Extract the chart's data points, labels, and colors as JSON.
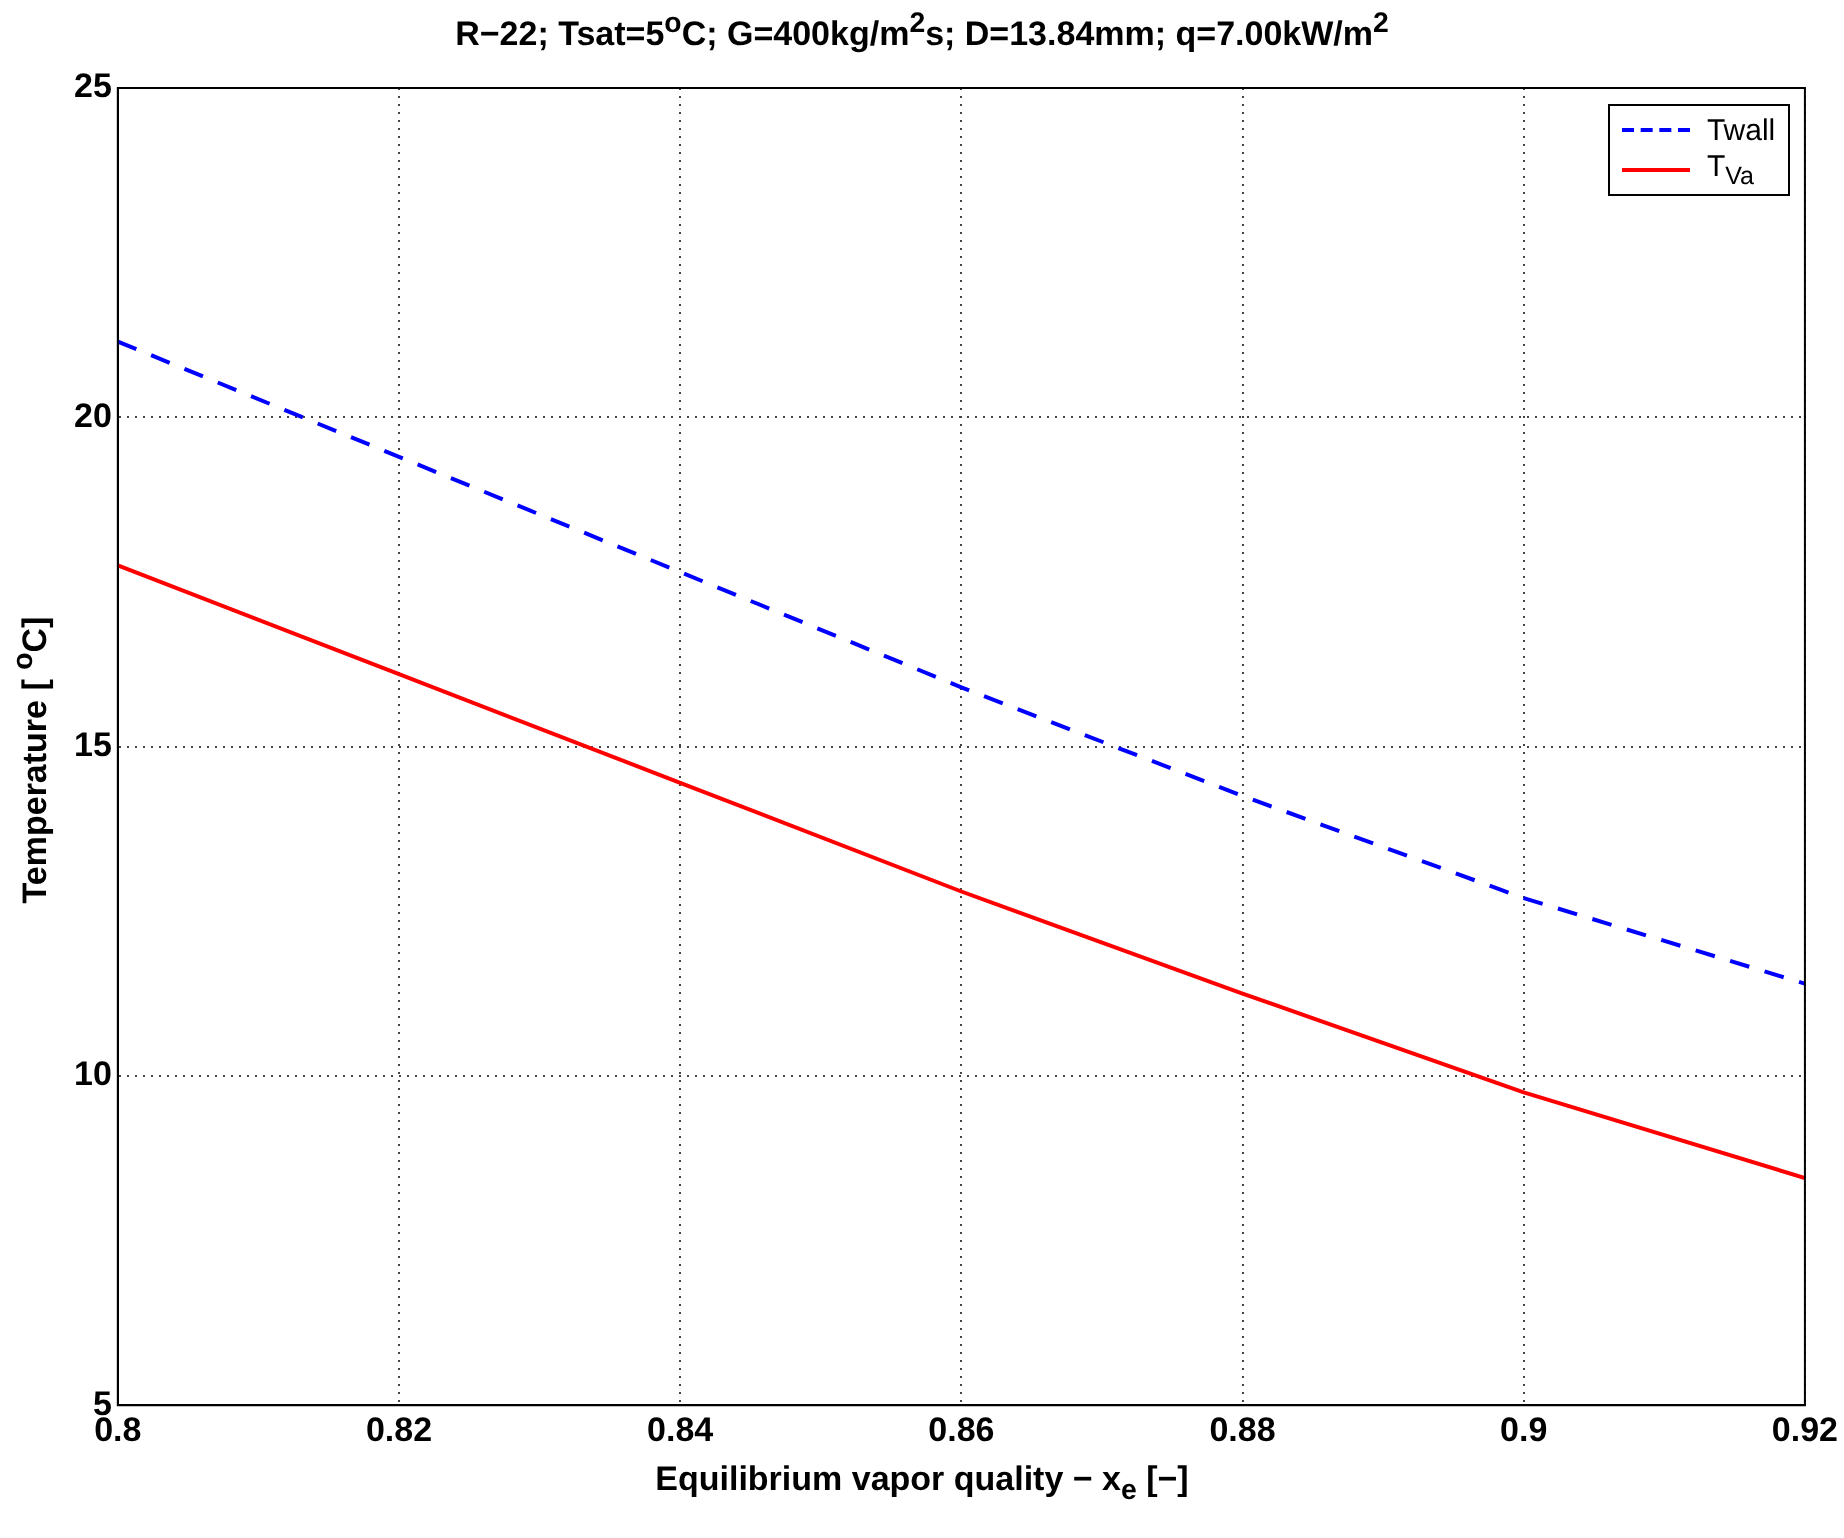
{
  "chart_data": {
    "type": "line",
    "title": "R−22; Tsat=5$^{o}$C; G=400kg/m$^{2}$s; D=13.84mm; q=7.00kW/m$^{2}$",
    "xlabel": "Equilibrium vapor quality − x$_{e}$ [−]",
    "ylabel": "Temperature [ $^{o}$C]",
    "x": [
      0.8,
      0.82,
      0.84,
      0.86,
      0.88,
      0.9,
      0.92
    ],
    "series": [
      {
        "name": "Twall",
        "color": "#0000ff",
        "line_style": "dashed",
        "values": [
          21.15,
          19.4,
          17.65,
          15.9,
          14.25,
          12.7,
          11.4
        ]
      },
      {
        "name": "T$_{Va}$",
        "color": "#ff0000",
        "line_style": "solid",
        "values": [
          17.75,
          16.1,
          14.45,
          12.8,
          11.25,
          9.75,
          8.45
        ]
      }
    ],
    "xlim": [
      0.8,
      0.92
    ],
    "xticks": [
      0.8,
      0.82,
      0.84,
      0.86,
      0.88,
      0.9,
      0.92
    ],
    "ylim": [
      5,
      25
    ],
    "yticks": [
      5,
      10,
      15,
      20,
      25
    ],
    "grid": true,
    "legend": "top right",
    "marker": "none"
  }
}
